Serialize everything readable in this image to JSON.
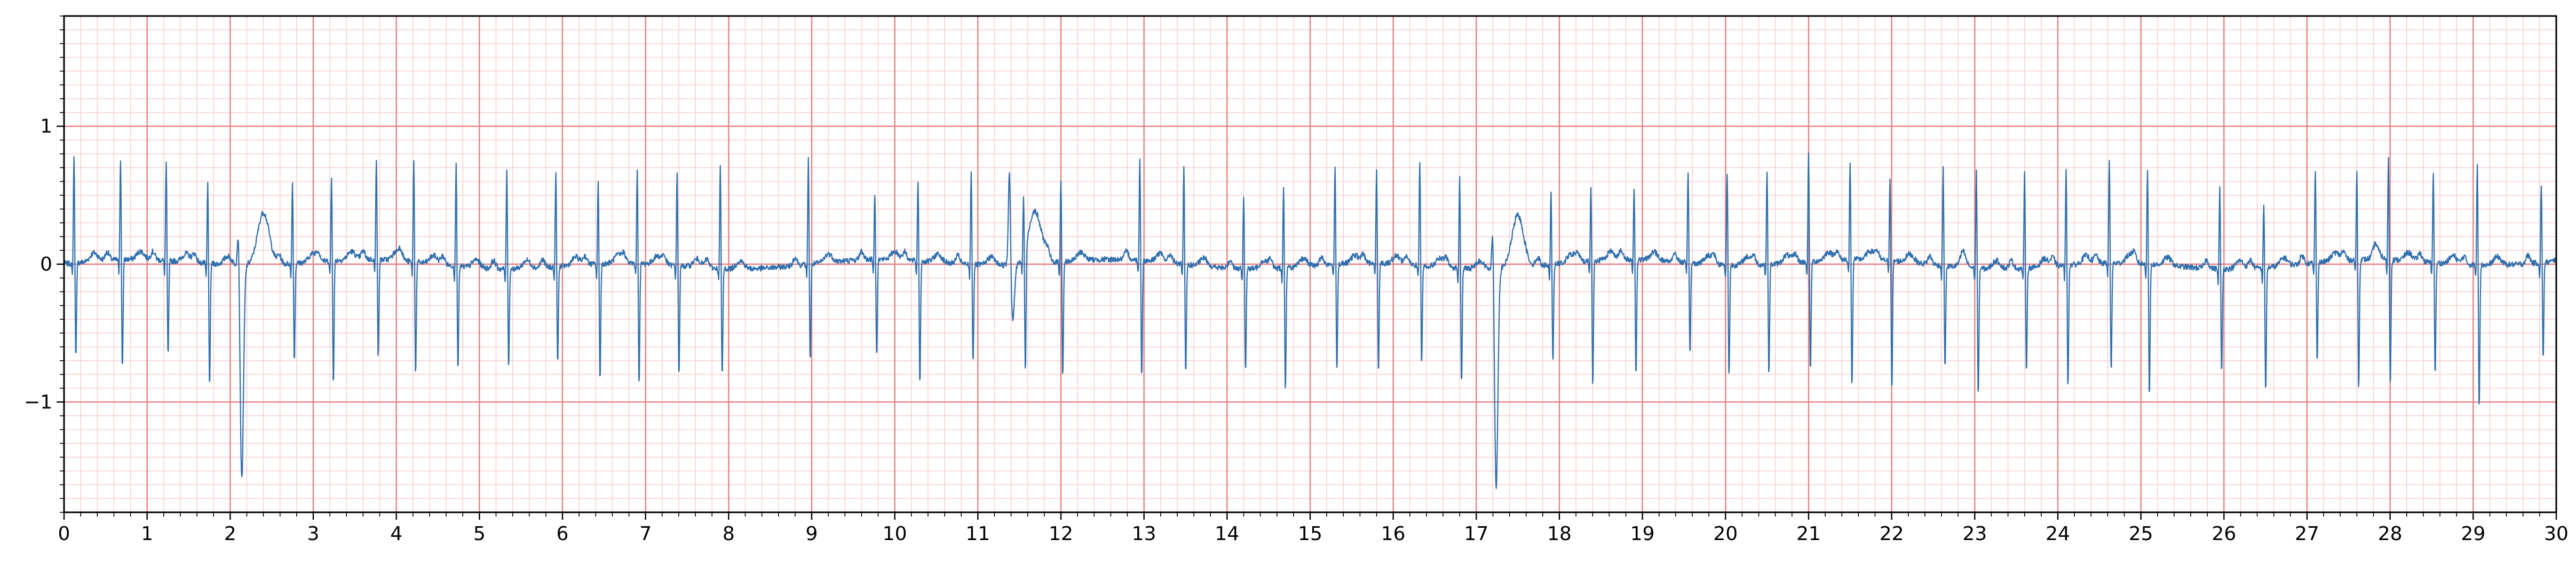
{
  "chart_data": {
    "type": "line",
    "title": "",
    "xlabel": "",
    "ylabel": "",
    "xlim": [
      0,
      30
    ],
    "ylim": [
      -1.8,
      1.8
    ],
    "grid": true,
    "x_ticks": [
      0,
      1,
      2,
      3,
      4,
      5,
      6,
      7,
      8,
      9,
      10,
      11,
      12,
      13,
      14,
      15,
      16,
      17,
      18,
      19,
      20,
      21,
      22,
      23,
      24,
      25,
      26,
      27,
      28,
      29,
      30
    ],
    "x_tick_labels": [
      "0",
      "1",
      "2",
      "3",
      "4",
      "5",
      "6",
      "7",
      "8",
      "9",
      "10",
      "11",
      "12",
      "13",
      "14",
      "15",
      "16",
      "17",
      "18",
      "19",
      "20",
      "21",
      "22",
      "23",
      "24",
      "25",
      "26",
      "27",
      "28",
      "29",
      "30"
    ],
    "y_ticks": [
      -1,
      0,
      1
    ],
    "y_tick_labels": [
      "−1",
      "0",
      "1"
    ],
    "series": [
      {
        "name": "",
        "sample_rate": 200,
        "beats": [
          {
            "t": 0.12,
            "r": 0.8,
            "s": -0.68
          },
          {
            "t": 0.68,
            "r": 0.75,
            "s": -0.8
          },
          {
            "t": 1.23,
            "r": 0.72,
            "s": -0.7
          },
          {
            "t": 1.73,
            "r": 0.6,
            "s": -0.92
          },
          {
            "t": 2.1,
            "r": 0.35,
            "s": -1.55,
            "pvc": true
          },
          {
            "t": 2.75,
            "r": 0.6,
            "s": -0.72
          },
          {
            "t": 3.22,
            "r": 0.62,
            "s": -0.9
          },
          {
            "t": 3.76,
            "r": 0.75,
            "s": -0.72
          },
          {
            "t": 4.21,
            "r": 0.75,
            "s": -0.82
          },
          {
            "t": 4.72,
            "r": 0.75,
            "s": -0.75
          },
          {
            "t": 5.33,
            "r": 0.72,
            "s": -0.72
          },
          {
            "t": 5.92,
            "r": 0.7,
            "s": -0.72
          },
          {
            "t": 6.43,
            "r": 0.6,
            "s": -0.85
          },
          {
            "t": 6.9,
            "r": 0.7,
            "s": -0.88
          },
          {
            "t": 7.38,
            "r": 0.68,
            "s": -0.82
          },
          {
            "t": 7.9,
            "r": 0.76,
            "s": -0.8
          },
          {
            "t": 8.96,
            "r": 0.78,
            "s": -0.72
          },
          {
            "t": 9.76,
            "r": 0.5,
            "s": -0.7
          },
          {
            "t": 10.28,
            "r": 0.6,
            "s": -0.9
          },
          {
            "t": 10.92,
            "r": 0.7,
            "s": -0.72
          },
          {
            "t": 11.38,
            "r": 0.68,
            "s": -0.42,
            "pvc": true
          },
          {
            "t": 11.55,
            "r": 0.45,
            "s": -0.9
          },
          {
            "t": 12.0,
            "r": 0.62,
            "s": -0.85
          },
          {
            "t": 12.95,
            "r": 0.75,
            "s": -0.85
          },
          {
            "t": 13.48,
            "r": 0.72,
            "s": -0.82
          },
          {
            "t": 14.2,
            "r": 0.55,
            "s": -0.75
          },
          {
            "t": 14.68,
            "r": 0.6,
            "s": -0.9
          },
          {
            "t": 15.3,
            "r": 0.72,
            "s": -0.78
          },
          {
            "t": 15.8,
            "r": 0.7,
            "s": -0.8
          },
          {
            "t": 16.32,
            "r": 0.78,
            "s": -0.72
          },
          {
            "t": 16.8,
            "r": 0.68,
            "s": -0.85
          },
          {
            "t": 17.2,
            "r": 0.38,
            "s": -1.58,
            "pvc": true
          },
          {
            "t": 17.9,
            "r": 0.55,
            "s": -0.72
          },
          {
            "t": 18.38,
            "r": 0.55,
            "s": -0.92
          },
          {
            "t": 18.9,
            "r": 0.55,
            "s": -0.85
          },
          {
            "t": 19.55,
            "r": 0.68,
            "s": -0.68
          },
          {
            "t": 20.02,
            "r": 0.68,
            "s": -0.82
          },
          {
            "t": 20.5,
            "r": 0.7,
            "s": -0.82
          },
          {
            "t": 21.0,
            "r": 0.8,
            "s": -0.82
          },
          {
            "t": 21.5,
            "r": 0.72,
            "s": -0.95
          },
          {
            "t": 21.98,
            "r": 0.62,
            "s": -0.95
          },
          {
            "t": 22.62,
            "r": 0.72,
            "s": -0.75
          },
          {
            "t": 23.02,
            "r": 0.72,
            "s": -0.95
          },
          {
            "t": 23.6,
            "r": 0.7,
            "s": -0.75
          },
          {
            "t": 24.1,
            "r": 0.72,
            "s": -0.9
          },
          {
            "t": 24.62,
            "r": 0.78,
            "s": -0.8
          },
          {
            "t": 25.08,
            "r": 0.72,
            "s": -0.98
          },
          {
            "t": 25.95,
            "r": 0.6,
            "s": -0.78
          },
          {
            "t": 26.48,
            "r": 0.48,
            "s": -0.92
          },
          {
            "t": 27.1,
            "r": 0.68,
            "s": -0.72
          },
          {
            "t": 27.6,
            "r": 0.65,
            "s": -0.95
          },
          {
            "t": 27.98,
            "r": 0.75,
            "s": -0.92
          },
          {
            "t": 28.52,
            "r": 0.68,
            "s": -0.82
          },
          {
            "t": 29.05,
            "r": 0.75,
            "s": -1.05
          },
          {
            "t": 29.82,
            "r": 0.58,
            "s": -0.7
          }
        ]
      }
    ]
  },
  "colors": {
    "major_grid": "#e88080",
    "minor_grid": "#fbd0d0",
    "signal": "#2f6fae",
    "axis": "#000000"
  }
}
